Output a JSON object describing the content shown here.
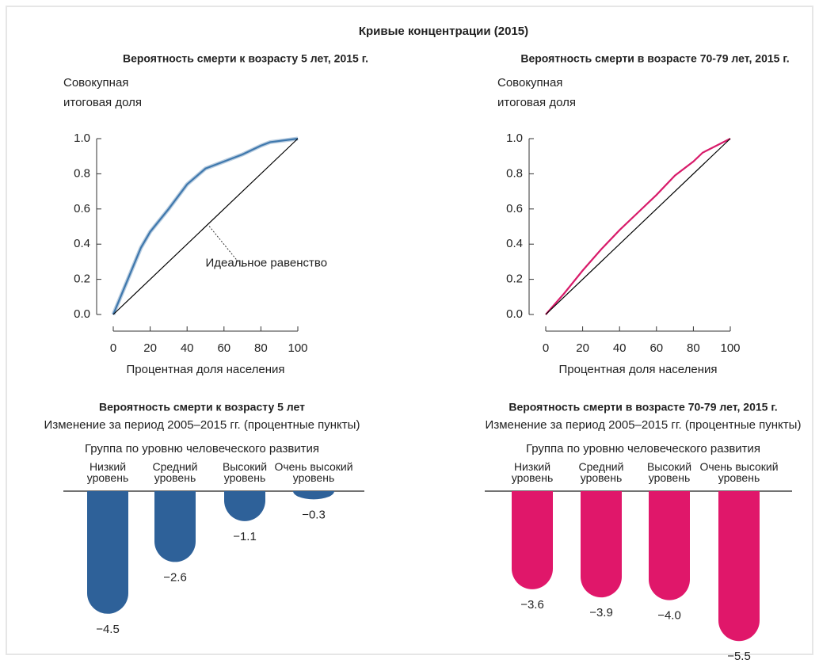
{
  "title": "Кривые концентрации (2015)",
  "chart_data": [
    {
      "type": "line",
      "title": "Вероятность смерти к возрасту 5 лет, 2015 г.",
      "ylabel": "Совокупная итоговая доля",
      "xlabel": "Процентная доля населения",
      "series": [
        {
          "color": "#3f78ad",
          "x": [
            0,
            15,
            20,
            30,
            40,
            50,
            60,
            70,
            80,
            85,
            100
          ],
          "values": [
            0,
            0.38,
            0.47,
            0.6,
            0.74,
            0.83,
            0.87,
            0.91,
            0.96,
            0.98,
            1.0
          ]
        },
        {
          "name": "Идеальное равенство",
          "color": "#000000",
          "x": [
            0,
            100
          ],
          "values": [
            0,
            1.0
          ]
        }
      ],
      "xlim": [
        0,
        100
      ],
      "xticks": [
        0,
        20,
        40,
        60,
        80,
        100
      ],
      "ylim": [
        0,
        1
      ],
      "yticks": [
        {
          "value": 0,
          "label": "0.0"
        },
        0.2,
        0.4,
        0.6,
        0.8,
        {
          "value": 1,
          "label": "1.0"
        }
      ]
    },
    {
      "type": "line",
      "title": "Вероятность смерти в возрасте 70-79 лет, 2015 г.",
      "ylabel": "Совокупная итоговая доля",
      "xlabel": "Процентная доля населения",
      "series": [
        {
          "color": "#d81b6a",
          "x": [
            0,
            10,
            20,
            30,
            40,
            50,
            60,
            70,
            80,
            85,
            100
          ],
          "values": [
            0,
            0.12,
            0.25,
            0.37,
            0.48,
            0.58,
            0.68,
            0.79,
            0.87,
            0.92,
            1.0
          ]
        },
        {
          "color": "#000000",
          "x": [
            0,
            100
          ],
          "values": [
            0,
            1.0
          ]
        }
      ],
      "xlim": [
        0,
        100
      ],
      "xticks": [
        0,
        20,
        40,
        60,
        80,
        100
      ],
      "ylim": [
        0,
        1
      ],
      "yticks": [
        {
          "value": 0,
          "label": "0.0"
        },
        0.2,
        0.4,
        0.6,
        0.8,
        {
          "value": 1,
          "label": "1.0"
        }
      ]
    },
    {
      "type": "bar",
      "title": "Вероятность смерти к возрасту 5 лет",
      "subtitle": "Изменение за период 2005–2015 гг. (процентные пункты)",
      "group_label": "Группа по уровню человеческого развития",
      "categories": [
        "Низкий уровень",
        "Средний уровень",
        "Высокий уровень",
        "Очень высокий уровень"
      ],
      "values": [
        -4.5,
        -2.6,
        -1.1,
        -0.3
      ],
      "value_labels": [
        "−4.5",
        "−2.6",
        "−1.1",
        "−0.3"
      ],
      "color": "#2e6199"
    },
    {
      "type": "bar",
      "title": "Вероятность смерти в возрасте 70-79 лет, 2015 г.",
      "subtitle": "Изменение за период 2005–2015 гг. (процентные пункты)",
      "group_label": "Группа по уровню человеческого развития",
      "categories": [
        "Низкий уровень",
        "Средний уровень",
        "Высокий уровень",
        "Очень высокий уровень"
      ],
      "values": [
        -3.6,
        -3.9,
        -4.0,
        -5.5
      ],
      "value_labels": [
        "−3.6",
        "−3.9",
        "−4.0",
        "−5.5"
      ],
      "color": "#e0176a"
    }
  ]
}
